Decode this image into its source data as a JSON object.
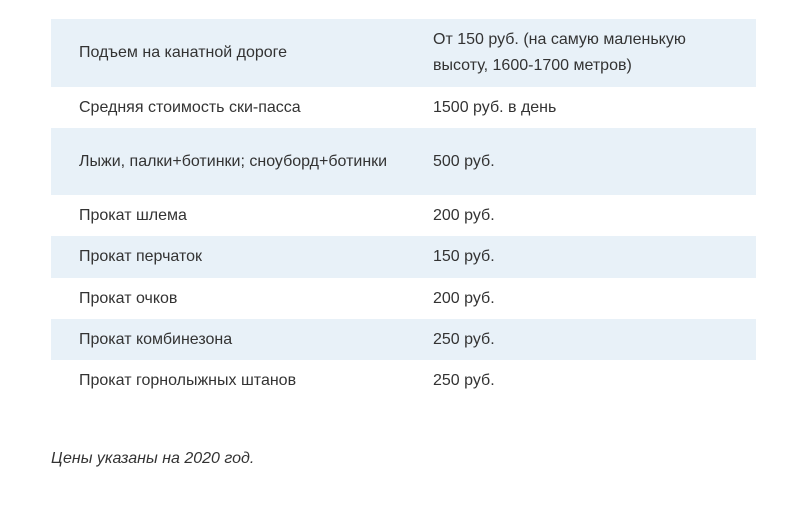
{
  "table": {
    "rows": [
      {
        "item": "Подъем на канатной дороге",
        "price": "От 150 руб. (на самую маленькую высоту, 1600-1700 метров)"
      },
      {
        "item": "Средняя стоимость ски-пасса",
        "price": "1500 руб. в день"
      },
      {
        "item": "Лыжи, палки+ботинки; сноуборд+ботинки",
        "price": "500 руб."
      },
      {
        "item": "Прокат шлема",
        "price": "200 руб."
      },
      {
        "item": "Прокат перчаток",
        "price": "150 руб."
      },
      {
        "item": "Прокат очков",
        "price": "200 руб."
      },
      {
        "item": "Прокат комбинезона",
        "price": "250 руб."
      },
      {
        "item": "Прокат горнолыжных штанов",
        "price": "250 руб."
      }
    ]
  },
  "footnote": "Цены указаны на 2020 год.",
  "colors": {
    "row_shade": "#e8f1f8",
    "text": "#333333"
  }
}
